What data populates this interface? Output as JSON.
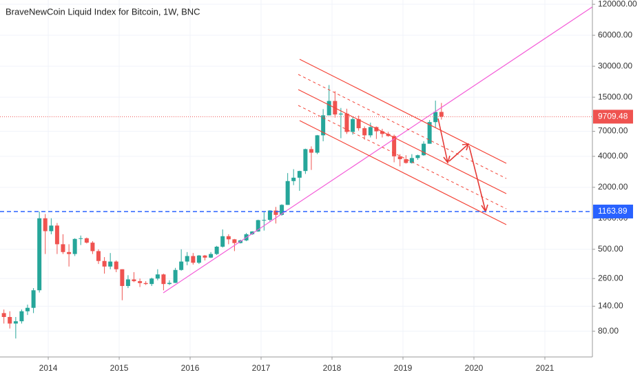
{
  "chart_data": {
    "type": "candlestick",
    "title": "BraveNewCoin Liquid Index for Bitcoin, 1W, BNC",
    "log_scale": true,
    "up_color": "#26a69a",
    "down_color": "#ef5350",
    "xlim": [
      2013.32,
      2021.67
    ],
    "xticks": [
      2014,
      2015,
      2016,
      2017,
      2018,
      2019,
      2020,
      2021
    ],
    "ylim": [
      45,
      132000
    ],
    "yticks": [
      {
        "value": 120000,
        "label": "120000.00"
      },
      {
        "value": 60000,
        "label": "60000.00"
      },
      {
        "value": 30000,
        "label": "30000.00"
      },
      {
        "value": 15000,
        "label": "15000.00"
      },
      {
        "value": 7000,
        "label": "7000.00"
      },
      {
        "value": 4000,
        "label": "4000.00"
      },
      {
        "value": 2000,
        "label": "2000.00"
      },
      {
        "value": 1000,
        "label": "1000.00"
      },
      {
        "value": 500,
        "label": "500.00"
      },
      {
        "value": 260,
        "label": "260.00"
      },
      {
        "value": 140,
        "label": "140.00"
      },
      {
        "value": 80,
        "label": "80.00"
      }
    ],
    "last_price": 9709.48,
    "last_price_color": "#ef5350",
    "horizontal_line": 1163.89,
    "horizontal_line_color": "#2962ff",
    "x": [
      2013.375,
      2013.458,
      2013.542,
      2013.625,
      2013.708,
      2013.792,
      2013.875,
      2013.958,
      2014.042,
      2014.125,
      2014.208,
      2014.292,
      2014.375,
      2014.458,
      2014.542,
      2014.625,
      2014.708,
      2014.792,
      2014.875,
      2014.958,
      2015.042,
      2015.125,
      2015.208,
      2015.292,
      2015.375,
      2015.458,
      2015.542,
      2015.625,
      2015.708,
      2015.792,
      2015.875,
      2015.958,
      2016.042,
      2016.125,
      2016.208,
      2016.292,
      2016.375,
      2016.458,
      2016.542,
      2016.625,
      2016.708,
      2016.792,
      2016.875,
      2016.958,
      2017.042,
      2017.125,
      2017.208,
      2017.292,
      2017.375,
      2017.458,
      2017.542,
      2017.625,
      2017.708,
      2017.792,
      2017.875,
      2017.958,
      2018.042,
      2018.125,
      2018.208,
      2018.292,
      2018.375,
      2018.458,
      2018.542,
      2018.625,
      2018.708,
      2018.792,
      2018.875,
      2018.958,
      2019.042,
      2019.125,
      2019.208,
      2019.292,
      2019.375,
      2019.458,
      2019.542
    ],
    "open": [
      120,
      110,
      95,
      100,
      125,
      135,
      200,
      1000,
      750,
      850,
      560,
      470,
      450,
      630,
      640,
      580,
      480,
      385,
      340,
      380,
      320,
      220,
      255,
      245,
      235,
      230,
      260,
      285,
      230,
      236,
      315,
      380,
      430,
      370,
      435,
      415,
      450,
      530,
      670,
      625,
      575,
      610,
      700,
      745,
      960,
      965,
      1190,
      1080,
      1350,
      2300,
      2480,
      2880,
      4700,
      4340,
      6400,
      10000,
      13800,
      10200,
      10400,
      6900,
      9200,
      7500,
      6400,
      7700,
      7000,
      6600,
      6300,
      4000,
      3750,
      3450,
      3850,
      4100,
      5300,
      8600,
      10800
    ],
    "high": [
      130,
      125,
      110,
      130,
      145,
      210,
      1163,
      1100,
      1000,
      900,
      700,
      560,
      640,
      680,
      650,
      600,
      500,
      420,
      460,
      390,
      320,
      280,
      300,
      260,
      245,
      265,
      320,
      290,
      250,
      330,
      500,
      470,
      460,
      440,
      440,
      470,
      540,
      780,
      700,
      630,
      620,
      720,
      750,
      970,
      1150,
      1200,
      1290,
      1370,
      2750,
      3000,
      2900,
      4750,
      5000,
      6450,
      11500,
      19700,
      17200,
      11800,
      11600,
      9700,
      9950,
      7800,
      8500,
      7800,
      7400,
      6900,
      6500,
      4200,
      4100,
      4200,
      4150,
      5600,
      9000,
      13900,
      13200
    ],
    "low": [
      95,
      85,
      68,
      95,
      115,
      120,
      190,
      450,
      700,
      450,
      450,
      340,
      430,
      550,
      570,
      450,
      360,
      290,
      320,
      300,
      160,
      210,
      240,
      215,
      225,
      220,
      250,
      200,
      225,
      235,
      310,
      350,
      355,
      360,
      390,
      410,
      440,
      520,
      560,
      480,
      570,
      600,
      690,
      740,
      760,
      920,
      890,
      1060,
      1350,
      2100,
      1850,
      2700,
      2950,
      4200,
      5600,
      10000,
      9500,
      6000,
      6600,
      6500,
      7100,
      5800,
      6100,
      5900,
      6100,
      6200,
      3500,
      3200,
      3400,
      3400,
      3700,
      4050,
      5300,
      7500,
      9100
    ],
    "close": [
      110,
      95,
      100,
      125,
      135,
      200,
      1000,
      750,
      850,
      560,
      470,
      450,
      630,
      640,
      580,
      480,
      385,
      340,
      380,
      320,
      220,
      255,
      245,
      235,
      230,
      260,
      285,
      230,
      236,
      315,
      380,
      430,
      370,
      435,
      415,
      450,
      530,
      670,
      625,
      575,
      610,
      700,
      745,
      960,
      965,
      1190,
      1080,
      1350,
      2300,
      2480,
      2880,
      4700,
      4340,
      6400,
      10000,
      13800,
      10200,
      10400,
      6900,
      9200,
      7500,
      6400,
      7700,
      7000,
      6600,
      6300,
      4000,
      3750,
      3450,
      3850,
      4100,
      5300,
      8600,
      10800,
      9709.48
    ]
  }
}
